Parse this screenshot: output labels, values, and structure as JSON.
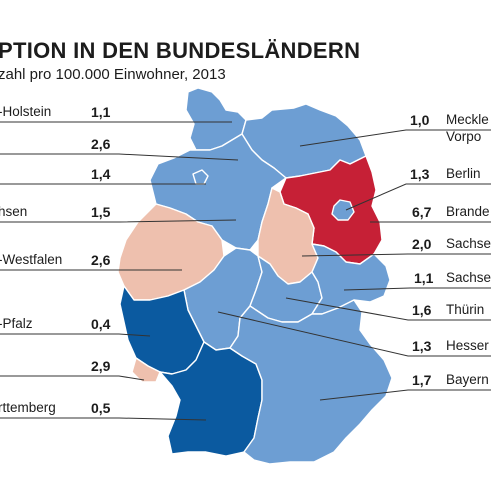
{
  "title": "PTION IN DEN BUNDESLÄNDERN",
  "subtitle": "zahl pro 100.000 Einwohner, 2013",
  "colors": {
    "light_blue": "#6d9ed3",
    "dark_blue": "#0b5aa0",
    "pink": "#eec0ae",
    "red": "#c62036",
    "leader": "#333333"
  },
  "states": [
    {
      "key": "sh",
      "label": "-Holstein",
      "value": "1,1",
      "color": "light_blue"
    },
    {
      "key": "hh",
      "label": "",
      "value": "2,6",
      "color": "pink"
    },
    {
      "key": "hb",
      "label": "",
      "value": "1,4",
      "color": "light_blue"
    },
    {
      "key": "ni",
      "label": "hsen",
      "value": "1,5",
      "color": "light_blue"
    },
    {
      "key": "nw",
      "label": "-Westfalen",
      "value": "2,6",
      "color": "pink"
    },
    {
      "key": "rp",
      "label": "-Pfalz",
      "value": "0,4",
      "color": "dark_blue"
    },
    {
      "key": "sl",
      "label": "",
      "value": "2,9",
      "color": "pink"
    },
    {
      "key": "bw",
      "label": "rttemberg",
      "value": "0,5",
      "color": "dark_blue"
    },
    {
      "key": "mv",
      "label": "Meckle",
      "label2": "Vorpo",
      "value": "1,0",
      "color": "light_blue"
    },
    {
      "key": "be",
      "label": "Berlin",
      "value": "1,3",
      "color": "light_blue"
    },
    {
      "key": "bb",
      "label": "Brande",
      "value": "6,7",
      "color": "red"
    },
    {
      "key": "st",
      "label": "Sachse",
      "value": "2,0",
      "color": "pink"
    },
    {
      "key": "sn",
      "label": "Sachse",
      "value": "1,1",
      "color": "light_blue"
    },
    {
      "key": "th",
      "label": "Thürin",
      "value": "1,6",
      "color": "light_blue"
    },
    {
      "key": "he",
      "label": "Hesser",
      "value": "1,3",
      "color": "light_blue"
    },
    {
      "key": "by",
      "label": "Bayern",
      "value": "1,7",
      "color": "light_blue"
    }
  ],
  "source": ""
}
